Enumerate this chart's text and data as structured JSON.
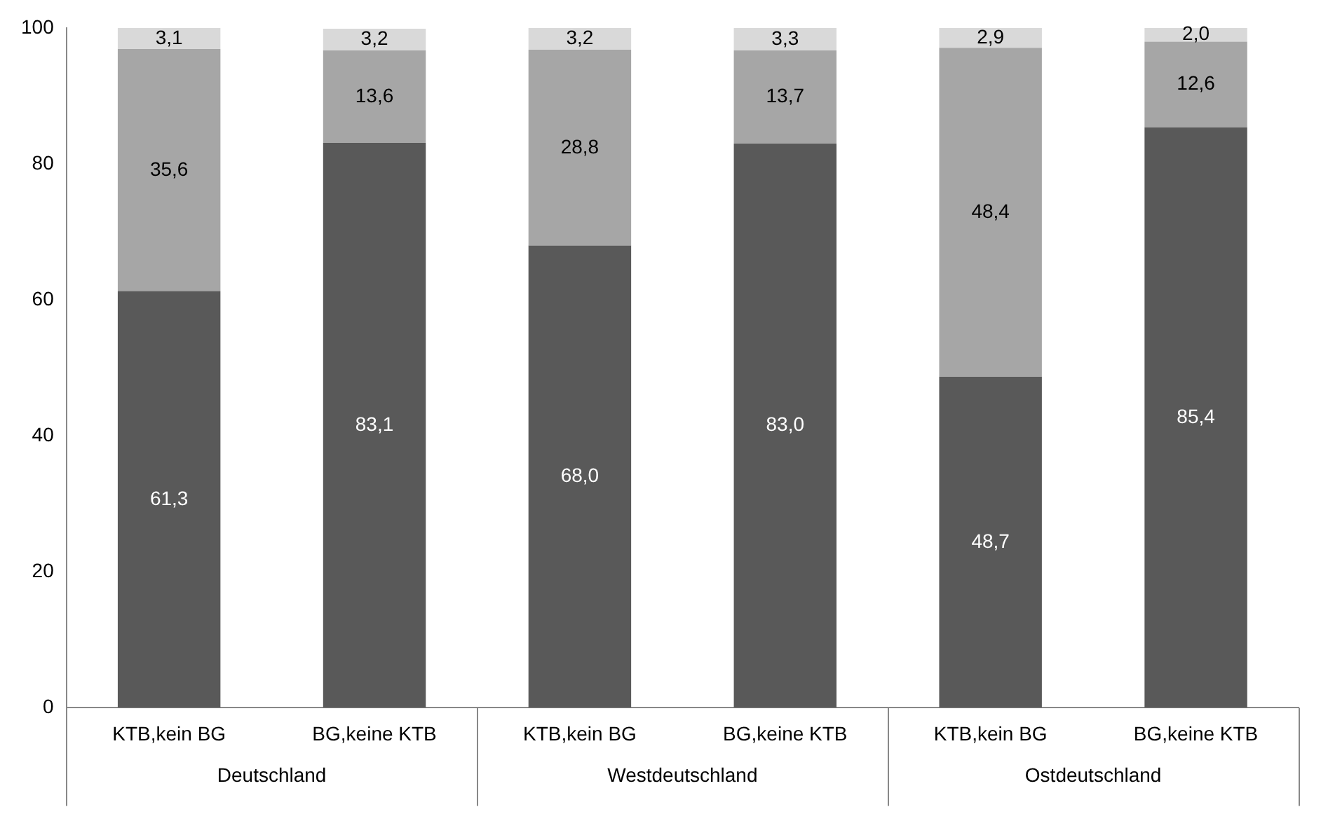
{
  "chart_data": {
    "type": "bar",
    "stacked": true,
    "categories": [
      "KTB,kein BG",
      "BG,keine KTB",
      "KTB,kein BG",
      "BG,keine KTB",
      "KTB,kein BG",
      "BG,keine KTB"
    ],
    "series": [
      {
        "color": "#595959",
        "values": [
          61.3,
          83.1,
          68.0,
          83.0,
          48.7,
          85.4
        ],
        "value_labels": [
          "61,3",
          "83,1",
          "68,0",
          "83,0",
          "48,7",
          "85,4"
        ]
      },
      {
        "color": "#a6a6a6",
        "values": [
          35.6,
          13.6,
          28.8,
          13.7,
          48.4,
          12.6
        ],
        "value_labels": [
          "35,6",
          "13,6",
          "28,8",
          "13,7",
          "48,4",
          "12,6"
        ]
      },
      {
        "color": "#d9d9d9",
        "values": [
          3.1,
          3.2,
          3.2,
          3.3,
          2.9,
          2.0
        ],
        "value_labels": [
          "3,1",
          "3,2",
          "3,2",
          "3,3",
          "2,9",
          "2,0"
        ]
      }
    ],
    "annotations": [
      "Deutschland",
      "Westdeutschland",
      "Ostdeutschland"
    ],
    "ylim": [
      0,
      100
    ],
    "yticks": [
      0,
      20,
      40,
      60,
      80,
      100
    ],
    "grid": false,
    "legend": false
  }
}
